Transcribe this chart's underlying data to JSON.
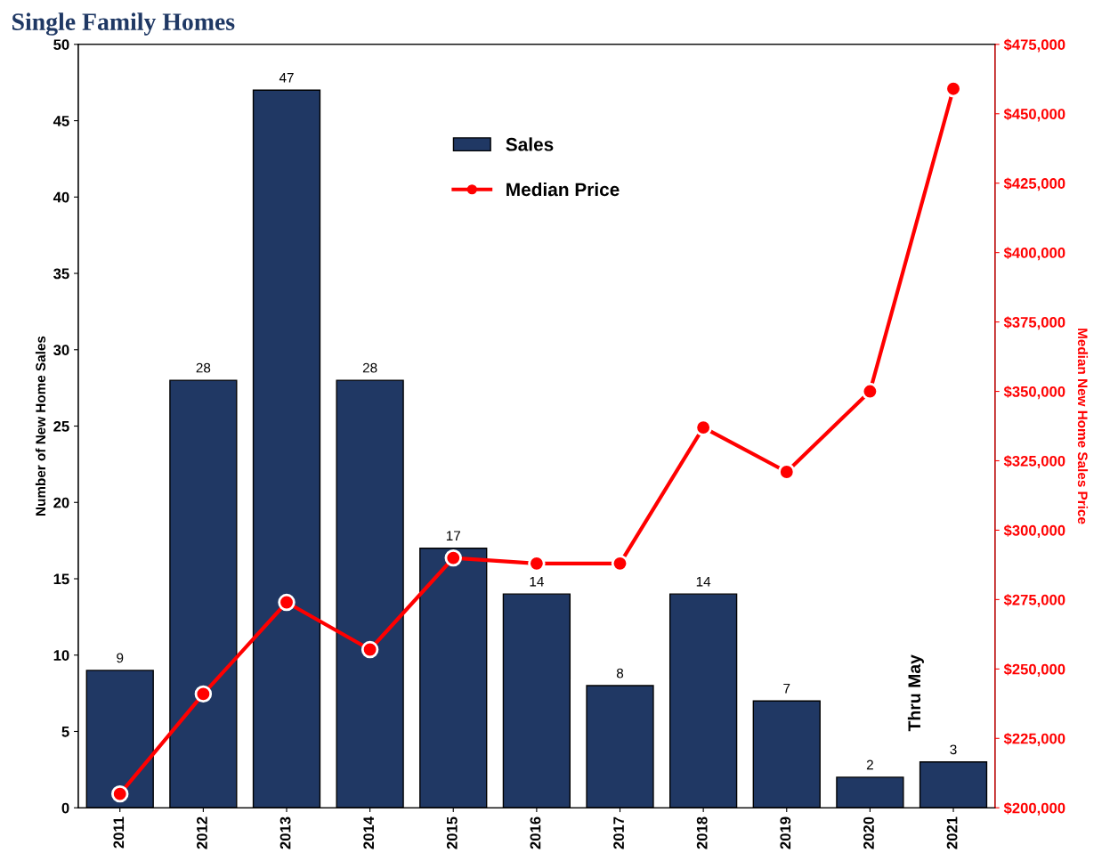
{
  "chart_data": {
    "type": "bar",
    "title": "Single Family Homes",
    "ylabel": "Number of New Home Sales",
    "y2label": "Median New Home Sales Price",
    "categories": [
      "2011",
      "2012",
      "2013",
      "2014",
      "2015",
      "2016",
      "2017",
      "2018",
      "2019",
      "2020",
      "2021"
    ],
    "series": [
      {
        "name": "Sales",
        "color": "#203864",
        "values": [
          9,
          28,
          47,
          28,
          17,
          14,
          8,
          14,
          7,
          2,
          3
        ],
        "value_labels": [
          "9",
          "28",
          "47",
          "28",
          "17",
          "14",
          "8",
          "14",
          "7",
          "2",
          "3"
        ]
      },
      {
        "name": "Median Price",
        "type": "line",
        "axis": "y2",
        "color": "#ff0000",
        "marker": "circle",
        "values": [
          205000,
          241000,
          274000,
          257000,
          290000,
          288000,
          288000,
          337000,
          321000,
          350000,
          459000
        ]
      }
    ],
    "ylim": [
      0,
      50
    ],
    "yticks": [
      0,
      5,
      10,
      15,
      20,
      25,
      30,
      35,
      40,
      45,
      50
    ],
    "y2lim": [
      200000,
      475000
    ],
    "y2ticks": [
      {
        "value": 200000,
        "label": "$200,000"
      },
      {
        "value": 225000,
        "label": "$225,000"
      },
      {
        "value": 250000,
        "label": "$250,000"
      },
      {
        "value": 275000,
        "label": "$275,000"
      },
      {
        "value": 300000,
        "label": "$300,000"
      },
      {
        "value": 325000,
        "label": "$325,000"
      },
      {
        "value": 350000,
        "label": "$350,000"
      },
      {
        "value": 375000,
        "label": "$375,000"
      },
      {
        "value": 400000,
        "label": "$400,000"
      },
      {
        "value": 425000,
        "label": "$425,000"
      },
      {
        "value": 450000,
        "label": "$450,000"
      },
      {
        "value": 475000,
        "label": "$475,000"
      }
    ],
    "annotations": [
      "Thru May"
    ],
    "legend": "top",
    "grid": false
  }
}
